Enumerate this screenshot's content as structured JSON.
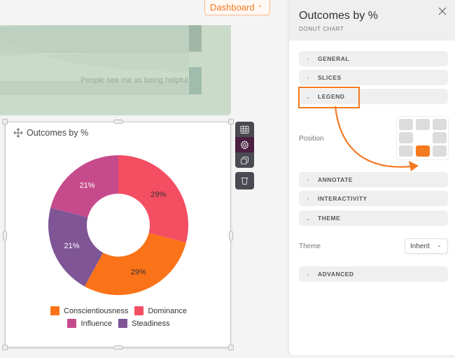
{
  "topbar": {
    "dashboard_label": "Dashboard",
    "dashboard_chevron": "⌄"
  },
  "background_widget": {
    "label": "People see me as being helpful"
  },
  "widget": {
    "title": "Outcomes by %",
    "toolbar": [
      {
        "name": "table-icon",
        "label": "Data table"
      },
      {
        "name": "gear-icon",
        "label": "Settings",
        "active": true
      },
      {
        "name": "duplicate-icon",
        "label": "Duplicate"
      },
      {
        "name": "trash-icon",
        "label": "Delete"
      }
    ]
  },
  "chart_data": {
    "type": "pie",
    "subtype": "donut",
    "title": "Outcomes by %",
    "categories": [
      "Dominance",
      "Conscientiousness",
      "Steadiness",
      "Influence"
    ],
    "values": [
      29,
      29,
      21,
      21
    ],
    "labels": [
      "29%",
      "29%",
      "21%",
      "21%"
    ],
    "colors": [
      "#f44e63",
      "#fb7318",
      "#7f5596",
      "#c64b8c"
    ],
    "start_angle": "top, clockwise",
    "legend": {
      "position": "bottom-center",
      "entries": [
        {
          "label": "Conscientiousness",
          "color": "#fb7318"
        },
        {
          "label": "Dominance",
          "color": "#f44e63"
        },
        {
          "label": "Influence",
          "color": "#c64b8c"
        },
        {
          "label": "Steadiness",
          "color": "#7f5596"
        }
      ]
    }
  },
  "panel": {
    "title": "Outcomes by %",
    "subtitle": "DONUT CHART",
    "close_icon": "×",
    "sections": [
      {
        "label": "GENERAL",
        "expanded": false
      },
      {
        "label": "SLICES",
        "expanded": false
      },
      {
        "label": "LEGEND",
        "expanded": true
      },
      {
        "label": "ANNOTATE",
        "expanded": false
      },
      {
        "label": "INTERACTIVITY",
        "expanded": false
      },
      {
        "label": "THEME",
        "expanded": true
      },
      {
        "label": "ADVANCED",
        "expanded": false
      }
    ],
    "legend_position_label": "Position",
    "legend_position_selected": "bottom-center",
    "theme_label": "Theme",
    "theme_value": "Inherit",
    "chevron_collapsed": "›",
    "chevron_expanded": "⌄"
  },
  "colors": {
    "accent": "#f47a20",
    "toolbar_bg": "#4a4a52",
    "toolbar_active": "#4a1f3f"
  }
}
